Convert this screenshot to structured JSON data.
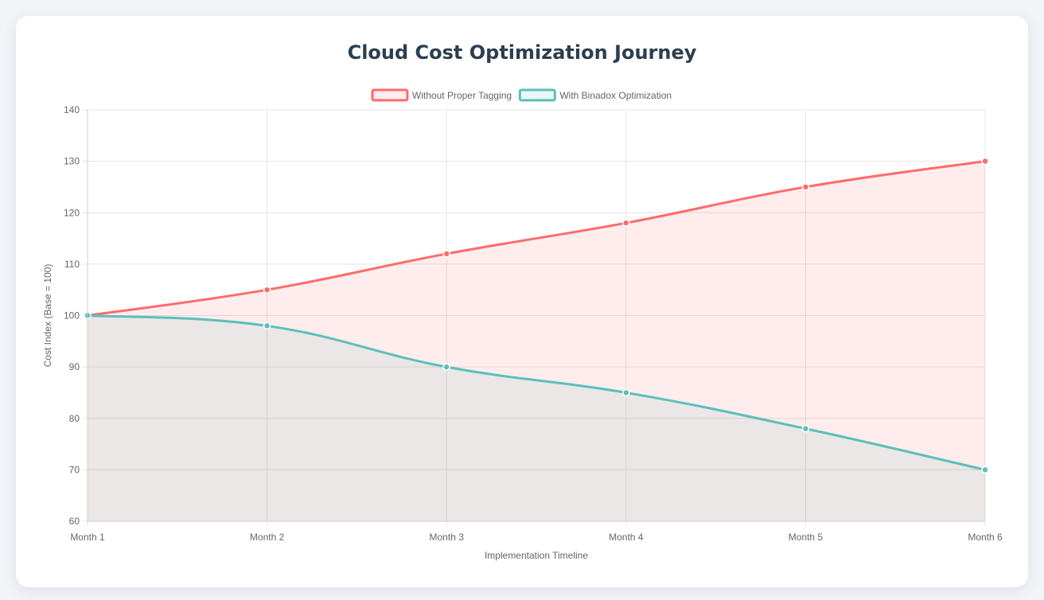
{
  "chart_data": {
    "type": "area",
    "title": "Cloud Cost Optimization Journey",
    "xlabel": "Implementation Timeline",
    "ylabel": "Cost Index (Base = 100)",
    "categories": [
      "Month 1",
      "Month 2",
      "Month 3",
      "Month 4",
      "Month 5",
      "Month 6"
    ],
    "ylim": [
      60,
      140
    ],
    "yticks": [
      60,
      70,
      80,
      90,
      100,
      110,
      120,
      130,
      140
    ],
    "grid": true,
    "legend_position": "top-center",
    "series": [
      {
        "name": "Without Proper Tagging",
        "values": [
          100,
          105,
          112,
          118,
          125,
          130
        ],
        "color": "#ff6b6b",
        "fill": "#ff6b6b"
      },
      {
        "name": "With Binadox Optimization",
        "values": [
          100,
          98,
          90,
          85,
          78,
          70
        ],
        "color": "#5bbfba",
        "fill": "#5bbfba"
      }
    ]
  }
}
